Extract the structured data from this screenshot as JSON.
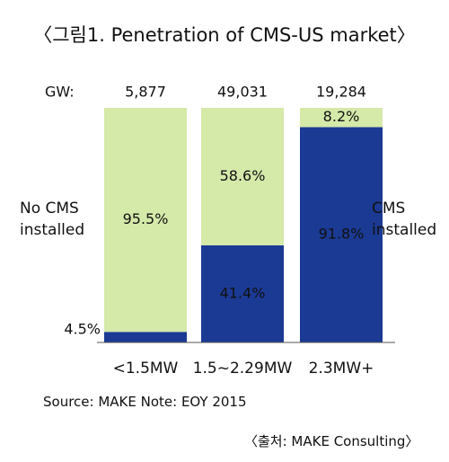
{
  "chart_data": {
    "type": "stacked_bar",
    "title": "〈그림1. Penetration of CMS-US market〉",
    "categories": [
      "<1.5MW",
      "1.5~2.29MW",
      "2.3MW+"
    ],
    "totals": {
      "label": "GW:",
      "values": [
        5877,
        49031,
        19284
      ],
      "value_labels": [
        "5,877",
        "49,031",
        "19,284"
      ]
    },
    "series": [
      {
        "name": "CMS installed",
        "color": "#1b3a94",
        "values": [
          4.5,
          41.4,
          91.8
        ],
        "value_labels": [
          "4.5%",
          "41.4%",
          "91.8%"
        ]
      },
      {
        "name": "No CMS installed",
        "color": "#d5e9a9",
        "values": [
          95.5,
          58.6,
          8.2
        ],
        "value_labels": [
          "95.5%",
          "58.6%",
          "8.2%"
        ]
      }
    ],
    "ylim": [
      0,
      100
    ],
    "source": "Source: MAKE  Note: EOY 2015",
    "credit": "〈출처: MAKE Consulting〉"
  }
}
